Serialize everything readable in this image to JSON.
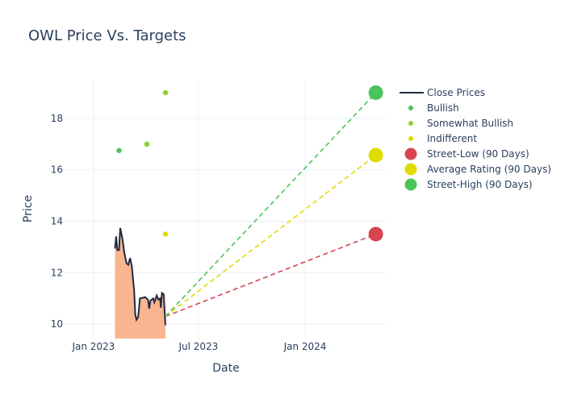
{
  "chart_data": {
    "type": "line",
    "title": "OWL Price Vs. Targets",
    "xlabel": "Date",
    "ylabel": "Price",
    "xlim": [
      "2022-11-12",
      "2024-05-22"
    ],
    "ylim": [
      9.44,
      19.47
    ],
    "x_ticks": [
      {
        "date": "2023-01-01",
        "label": "Jan 2023"
      },
      {
        "date": "2023-07-01",
        "label": "Jul 2023"
      },
      {
        "date": "2024-01-01",
        "label": "Jan 2024"
      }
    ],
    "y_ticks": [
      10,
      12,
      14,
      16,
      18
    ],
    "grid": true,
    "legend_placement": "right",
    "close_prices": {
      "name": "Close Prices",
      "color": "#1f2a44",
      "fill": "#f9b58f",
      "x": [
        "2023-02-07",
        "2023-02-09",
        "2023-02-11",
        "2023-02-14",
        "2023-02-16",
        "2023-02-20",
        "2023-02-23",
        "2023-02-27",
        "2023-03-02",
        "2023-03-05",
        "2023-03-08",
        "2023-03-12",
        "2023-03-14",
        "2023-03-16",
        "2023-03-19",
        "2023-03-22",
        "2023-03-26",
        "2023-03-31",
        "2023-04-05",
        "2023-04-07",
        "2023-04-09",
        "2023-04-14",
        "2023-04-16",
        "2023-04-20",
        "2023-04-23",
        "2023-04-26",
        "2023-04-27",
        "2023-04-29",
        "2023-05-02",
        "2023-05-05"
      ],
      "y": [
        12.94,
        13.41,
        12.88,
        12.88,
        13.74,
        13.3,
        12.78,
        12.36,
        12.31,
        12.57,
        12.26,
        11.32,
        10.38,
        10.17,
        10.28,
        11.0,
        11.02,
        11.05,
        10.95,
        10.6,
        10.91,
        11.0,
        10.85,
        11.11,
        10.95,
        11.0,
        10.64,
        11.21,
        11.16,
        9.96
      ]
    },
    "ratings": [
      {
        "name": "Bullish",
        "color": "#4cc35a",
        "points": [
          {
            "date": "2023-02-14",
            "value": 16.75
          }
        ]
      },
      {
        "name": "Somewhat Bullish",
        "color": "#8fd12a",
        "points": [
          {
            "date": "2023-04-03",
            "value": 17.0
          },
          {
            "date": "2023-05-05",
            "value": 19.0
          }
        ]
      },
      {
        "name": "Indifferent",
        "color": "#e0dc00",
        "points": [
          {
            "date": "2023-05-05",
            "value": 13.5
          }
        ]
      }
    ],
    "targets_start": {
      "date": "2023-05-05",
      "value": 10.3
    },
    "targets": [
      {
        "name": "Street-Low (90 Days)",
        "color": "#d64550",
        "date": "2024-05-02",
        "value": 13.5
      },
      {
        "name": "Average Rating (90 Days)",
        "color": "#e0dc00",
        "date": "2024-05-02",
        "value": 16.57
      },
      {
        "name": "Street-High (90 Days)",
        "color": "#4cc35a",
        "date": "2024-05-02",
        "value": 19.0
      }
    ]
  }
}
